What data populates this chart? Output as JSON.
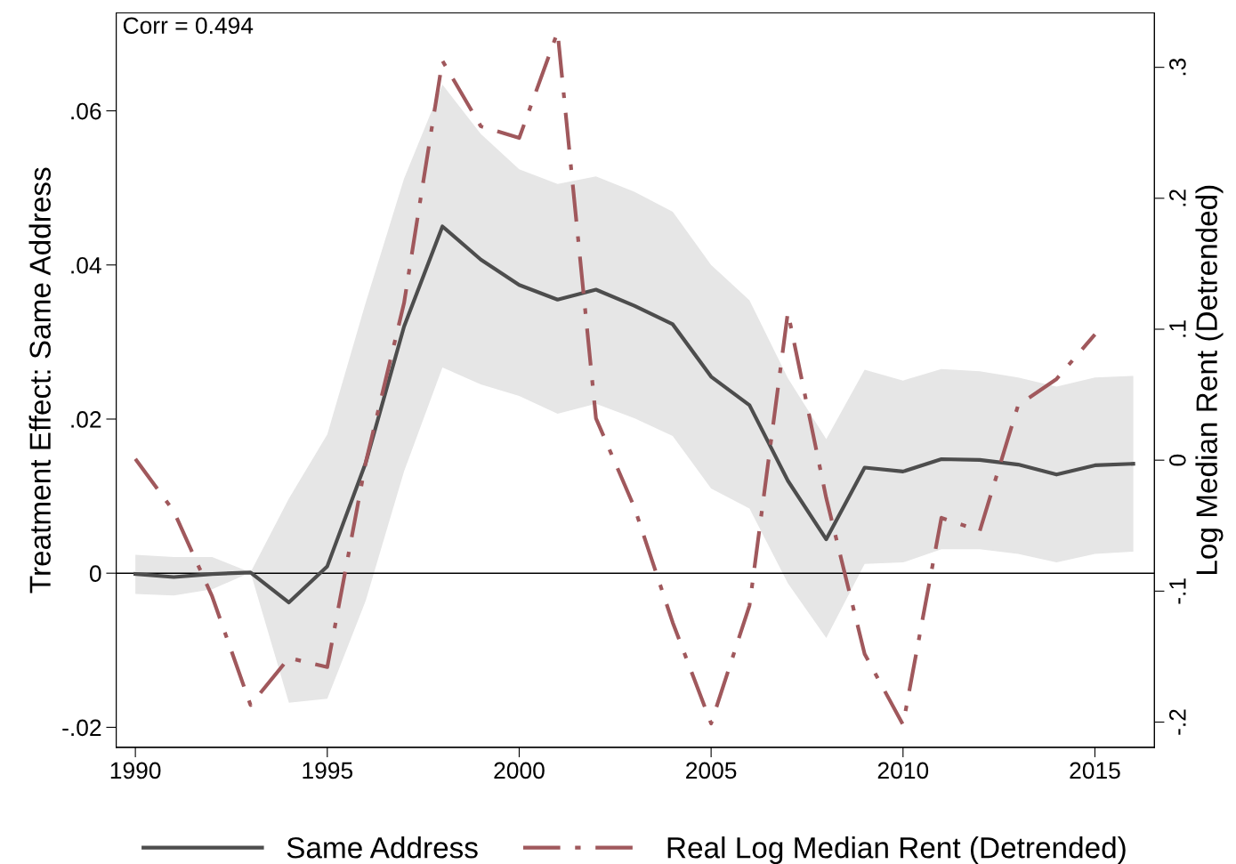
{
  "chart_data": {
    "type": "line",
    "xlabel": null,
    "ylabel": "Treatment Effect: Same Address",
    "y2label": "Log Median Rent (Detrended)",
    "annotations": [
      "Corr = 0.494"
    ],
    "xlim": [
      1989.5,
      2016.55
    ],
    "xticks": [
      1990,
      1995,
      2000,
      2005,
      2010,
      2015
    ],
    "ylim": [
      -0.0226,
      0.0727
    ],
    "yticks": [
      {
        "value": -0.02,
        "label": "-.02"
      },
      0,
      {
        "value": 0.02,
        "label": ".02"
      },
      {
        "value": 0.04,
        "label": ".04"
      },
      {
        "value": 0.06,
        "label": ".06"
      }
    ],
    "y2lim": [
      -0.2193,
      0.3415
    ],
    "y2ticks": [
      {
        "value": -0.2,
        "label": "-.2"
      },
      {
        "value": -0.1,
        "label": "-.1"
      },
      0,
      {
        "value": 0.1,
        "label": ".1"
      },
      {
        "value": 0.2,
        "label": ".2"
      },
      {
        "value": 0.3,
        "label": ".3"
      }
    ],
    "ref_lines": [
      {
        "axis": "y",
        "value": 0,
        "color": "#000000"
      }
    ],
    "grid": false,
    "legend": "bottom",
    "marker": "none",
    "series": [
      {
        "name": "Same Address",
        "color": "#4d4d4d",
        "line_style": "solid",
        "x": [
          1990,
          1991,
          1992,
          1993,
          1994,
          1995,
          1996,
          1997,
          1998,
          1999,
          2000,
          2001,
          2002,
          2003,
          2004,
          2005,
          2006,
          2007,
          2008,
          2009,
          2010,
          2011,
          2012,
          2013,
          2014,
          2015,
          2016
        ],
        "values": [
          -0.0001,
          -0.0005,
          -0.0001,
          0.0001,
          -0.0038,
          0.0009,
          0.0143,
          0.032,
          0.045,
          0.0407,
          0.0374,
          0.0355,
          0.0368,
          0.0347,
          0.0323,
          0.0255,
          0.0218,
          0.012,
          0.0044,
          0.0137,
          0.0132,
          0.0148,
          0.0147,
          0.0141,
          0.0128,
          0.014,
          0.0142
        ],
        "lower": [
          -0.0027,
          -0.0029,
          -0.0021,
          0.0001,
          -0.0168,
          -0.0163,
          -0.0036,
          0.0132,
          0.0267,
          0.0245,
          0.023,
          0.0207,
          0.022,
          0.0201,
          0.0178,
          0.011,
          0.0084,
          -0.0013,
          -0.0084,
          0.0012,
          0.0014,
          0.0031,
          0.0031,
          0.0025,
          0.0014,
          0.0025,
          0.0028
        ],
        "upper": [
          0.0024,
          0.0021,
          0.0021,
          0.0001,
          0.0097,
          0.018,
          0.0351,
          0.0512,
          0.0634,
          0.057,
          0.0524,
          0.0505,
          0.0515,
          0.0495,
          0.0469,
          0.04,
          0.0354,
          0.0253,
          0.0174,
          0.0264,
          0.025,
          0.0265,
          0.0262,
          0.0254,
          0.0242,
          0.0254,
          0.0256
        ]
      },
      {
        "name": "Real Log Median Rent (Detrended)",
        "color": "#a0585c",
        "line_style": "dashdot",
        "axis": "y2",
        "x": [
          1990,
          1991,
          1992,
          1993,
          1994,
          1995,
          1996,
          1997,
          1998,
          1999,
          2000,
          2001,
          2002,
          2003,
          2004,
          2005,
          2006,
          2007,
          2008,
          2009,
          2010,
          2011,
          2012,
          2013,
          2014,
          2015
        ],
        "values": [
          0.001,
          -0.039,
          -0.104,
          -0.187,
          -0.151,
          -0.158,
          -0.002,
          0.12,
          0.305,
          0.255,
          0.246,
          0.327,
          0.032,
          -0.036,
          -0.124,
          -0.201,
          -0.111,
          0.113,
          -0.029,
          -0.148,
          -0.202,
          -0.044,
          -0.054,
          0.042,
          0.062,
          0.096
        ]
      }
    ]
  }
}
